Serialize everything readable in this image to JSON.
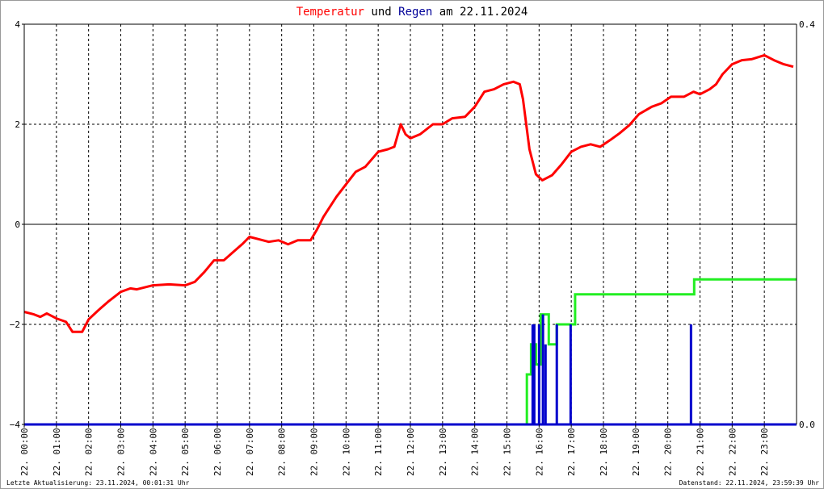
{
  "title": {
    "part1": "Temperatur",
    "part2": " und ",
    "part3": "Regen",
    "part4": " am 22.11.2024"
  },
  "footer": {
    "left": "Letzte Aktualisierung: 23.11.2024, 00:01:31 Uhr",
    "right": "Datenstand: 22.11.2024, 23:59:39 Uhr"
  },
  "colors": {
    "temperature": "#ff0000",
    "rain": "#0000cc",
    "rain_cumulative": "#22ee22",
    "title_temperature": "#ff0000",
    "title_rain": "#000099",
    "grid": "#000000",
    "frame_border": "#999999"
  },
  "chart_data": {
    "type": "line",
    "grid": true,
    "x_domain_hours": [
      0,
      24
    ],
    "x_tick_hours": [
      0,
      1,
      2,
      3,
      4,
      5,
      6,
      7,
      8,
      9,
      10,
      11,
      12,
      13,
      14,
      15,
      16,
      17,
      18,
      19,
      20,
      21,
      22,
      23
    ],
    "x_tick_labels": [
      "22. 00:00",
      "22. 01:00",
      "22. 02:00",
      "22. 03:00",
      "22. 04:00",
      "22. 05:00",
      "22. 06:00",
      "22. 07:00",
      "22. 08:00",
      "22. 09:00",
      "22. 10:00",
      "22. 11:00",
      "22. 12:00",
      "22. 13:00",
      "22. 14:00",
      "22. 15:00",
      "22. 16:00",
      "22. 17:00",
      "22. 18:00",
      "22. 19:00",
      "22. 20:00",
      "22. 21:00",
      "22. 22:00",
      "22. 23:00"
    ],
    "y_left": {
      "range": [
        -4,
        4
      ],
      "ticks": [
        -4,
        -2,
        0,
        2,
        4
      ],
      "tick_labels": [
        "−4",
        "−2",
        "0",
        "2",
        "4"
      ]
    },
    "y_right": {
      "range": [
        0,
        0.4
      ],
      "ticks": [
        0,
        0.4
      ],
      "tick_labels": [
        "0.0",
        "0.4"
      ]
    },
    "series": [
      {
        "key": "temperature",
        "axis": "left",
        "style": "line",
        "points": [
          [
            0,
            -1.75
          ],
          [
            0.3,
            -1.8
          ],
          [
            0.5,
            -1.85
          ],
          [
            0.7,
            -1.78
          ],
          [
            1.0,
            -1.88
          ],
          [
            1.3,
            -1.95
          ],
          [
            1.5,
            -2.15
          ],
          [
            1.8,
            -2.15
          ],
          [
            2.0,
            -1.9
          ],
          [
            2.3,
            -1.72
          ],
          [
            2.6,
            -1.55
          ],
          [
            3.0,
            -1.35
          ],
          [
            3.3,
            -1.28
          ],
          [
            3.5,
            -1.3
          ],
          [
            4.0,
            -1.22
          ],
          [
            4.5,
            -1.2
          ],
          [
            5.0,
            -1.22
          ],
          [
            5.3,
            -1.15
          ],
          [
            5.6,
            -0.95
          ],
          [
            5.9,
            -0.72
          ],
          [
            6.2,
            -0.72
          ],
          [
            6.5,
            -0.55
          ],
          [
            6.8,
            -0.38
          ],
          [
            7.0,
            -0.25
          ],
          [
            7.3,
            -0.3
          ],
          [
            7.6,
            -0.35
          ],
          [
            7.9,
            -0.32
          ],
          [
            8.2,
            -0.4
          ],
          [
            8.5,
            -0.32
          ],
          [
            8.9,
            -0.32
          ],
          [
            9.1,
            -0.1
          ],
          [
            9.3,
            0.15
          ],
          [
            9.7,
            0.55
          ],
          [
            10.0,
            0.8
          ],
          [
            10.3,
            1.05
          ],
          [
            10.6,
            1.15
          ],
          [
            11.0,
            1.45
          ],
          [
            11.3,
            1.5
          ],
          [
            11.5,
            1.55
          ],
          [
            11.7,
            2.0
          ],
          [
            11.85,
            1.8
          ],
          [
            12.0,
            1.72
          ],
          [
            12.3,
            1.8
          ],
          [
            12.7,
            2.0
          ],
          [
            13.0,
            2.0
          ],
          [
            13.3,
            2.12
          ],
          [
            13.7,
            2.15
          ],
          [
            14.0,
            2.35
          ],
          [
            14.3,
            2.65
          ],
          [
            14.6,
            2.7
          ],
          [
            14.9,
            2.8
          ],
          [
            15.2,
            2.85
          ],
          [
            15.4,
            2.8
          ],
          [
            15.5,
            2.5
          ],
          [
            15.7,
            1.5
          ],
          [
            15.9,
            1.0
          ],
          [
            16.1,
            0.88
          ],
          [
            16.4,
            0.98
          ],
          [
            16.7,
            1.2
          ],
          [
            17.0,
            1.45
          ],
          [
            17.3,
            1.55
          ],
          [
            17.6,
            1.6
          ],
          [
            17.9,
            1.55
          ],
          [
            18.2,
            1.68
          ],
          [
            18.5,
            1.82
          ],
          [
            18.8,
            1.98
          ],
          [
            19.1,
            2.2
          ],
          [
            19.5,
            2.35
          ],
          [
            19.8,
            2.42
          ],
          [
            20.1,
            2.55
          ],
          [
            20.5,
            2.55
          ],
          [
            20.8,
            2.65
          ],
          [
            21.0,
            2.6
          ],
          [
            21.3,
            2.7
          ],
          [
            21.5,
            2.8
          ],
          [
            21.7,
            3.0
          ],
          [
            22.0,
            3.2
          ],
          [
            22.3,
            3.28
          ],
          [
            22.6,
            3.3
          ],
          [
            23.0,
            3.38
          ],
          [
            23.3,
            3.28
          ],
          [
            23.6,
            3.2
          ],
          [
            23.9,
            3.15
          ]
        ]
      },
      {
        "key": "rain_cumulative",
        "axis": "right",
        "style": "step",
        "points": [
          [
            0,
            0
          ],
          [
            15.6,
            0
          ],
          [
            15.62,
            0.05
          ],
          [
            15.7,
            0.05
          ],
          [
            15.75,
            0.08
          ],
          [
            15.85,
            0.08
          ],
          [
            15.9,
            0.06
          ],
          [
            16.0,
            0.06
          ],
          [
            16.05,
            0.11
          ],
          [
            16.25,
            0.11
          ],
          [
            16.3,
            0.08
          ],
          [
            16.5,
            0.08
          ],
          [
            16.55,
            0.1
          ],
          [
            16.8,
            0.1
          ],
          [
            17.0,
            0.1
          ],
          [
            17.1,
            0.1
          ],
          [
            17.12,
            0.13
          ],
          [
            20.8,
            0.13
          ],
          [
            20.82,
            0.145
          ],
          [
            24,
            0.145
          ]
        ]
      },
      {
        "key": "rain",
        "axis": "right",
        "style": "bars",
        "points": [
          [
            15.8,
            0.1
          ],
          [
            15.85,
            0.1
          ],
          [
            16.0,
            0.1
          ],
          [
            16.12,
            0.11
          ],
          [
            16.2,
            0.08
          ],
          [
            16.55,
            0.1
          ],
          [
            16.98,
            0.1
          ],
          [
            20.72,
            0.1
          ]
        ]
      }
    ]
  }
}
